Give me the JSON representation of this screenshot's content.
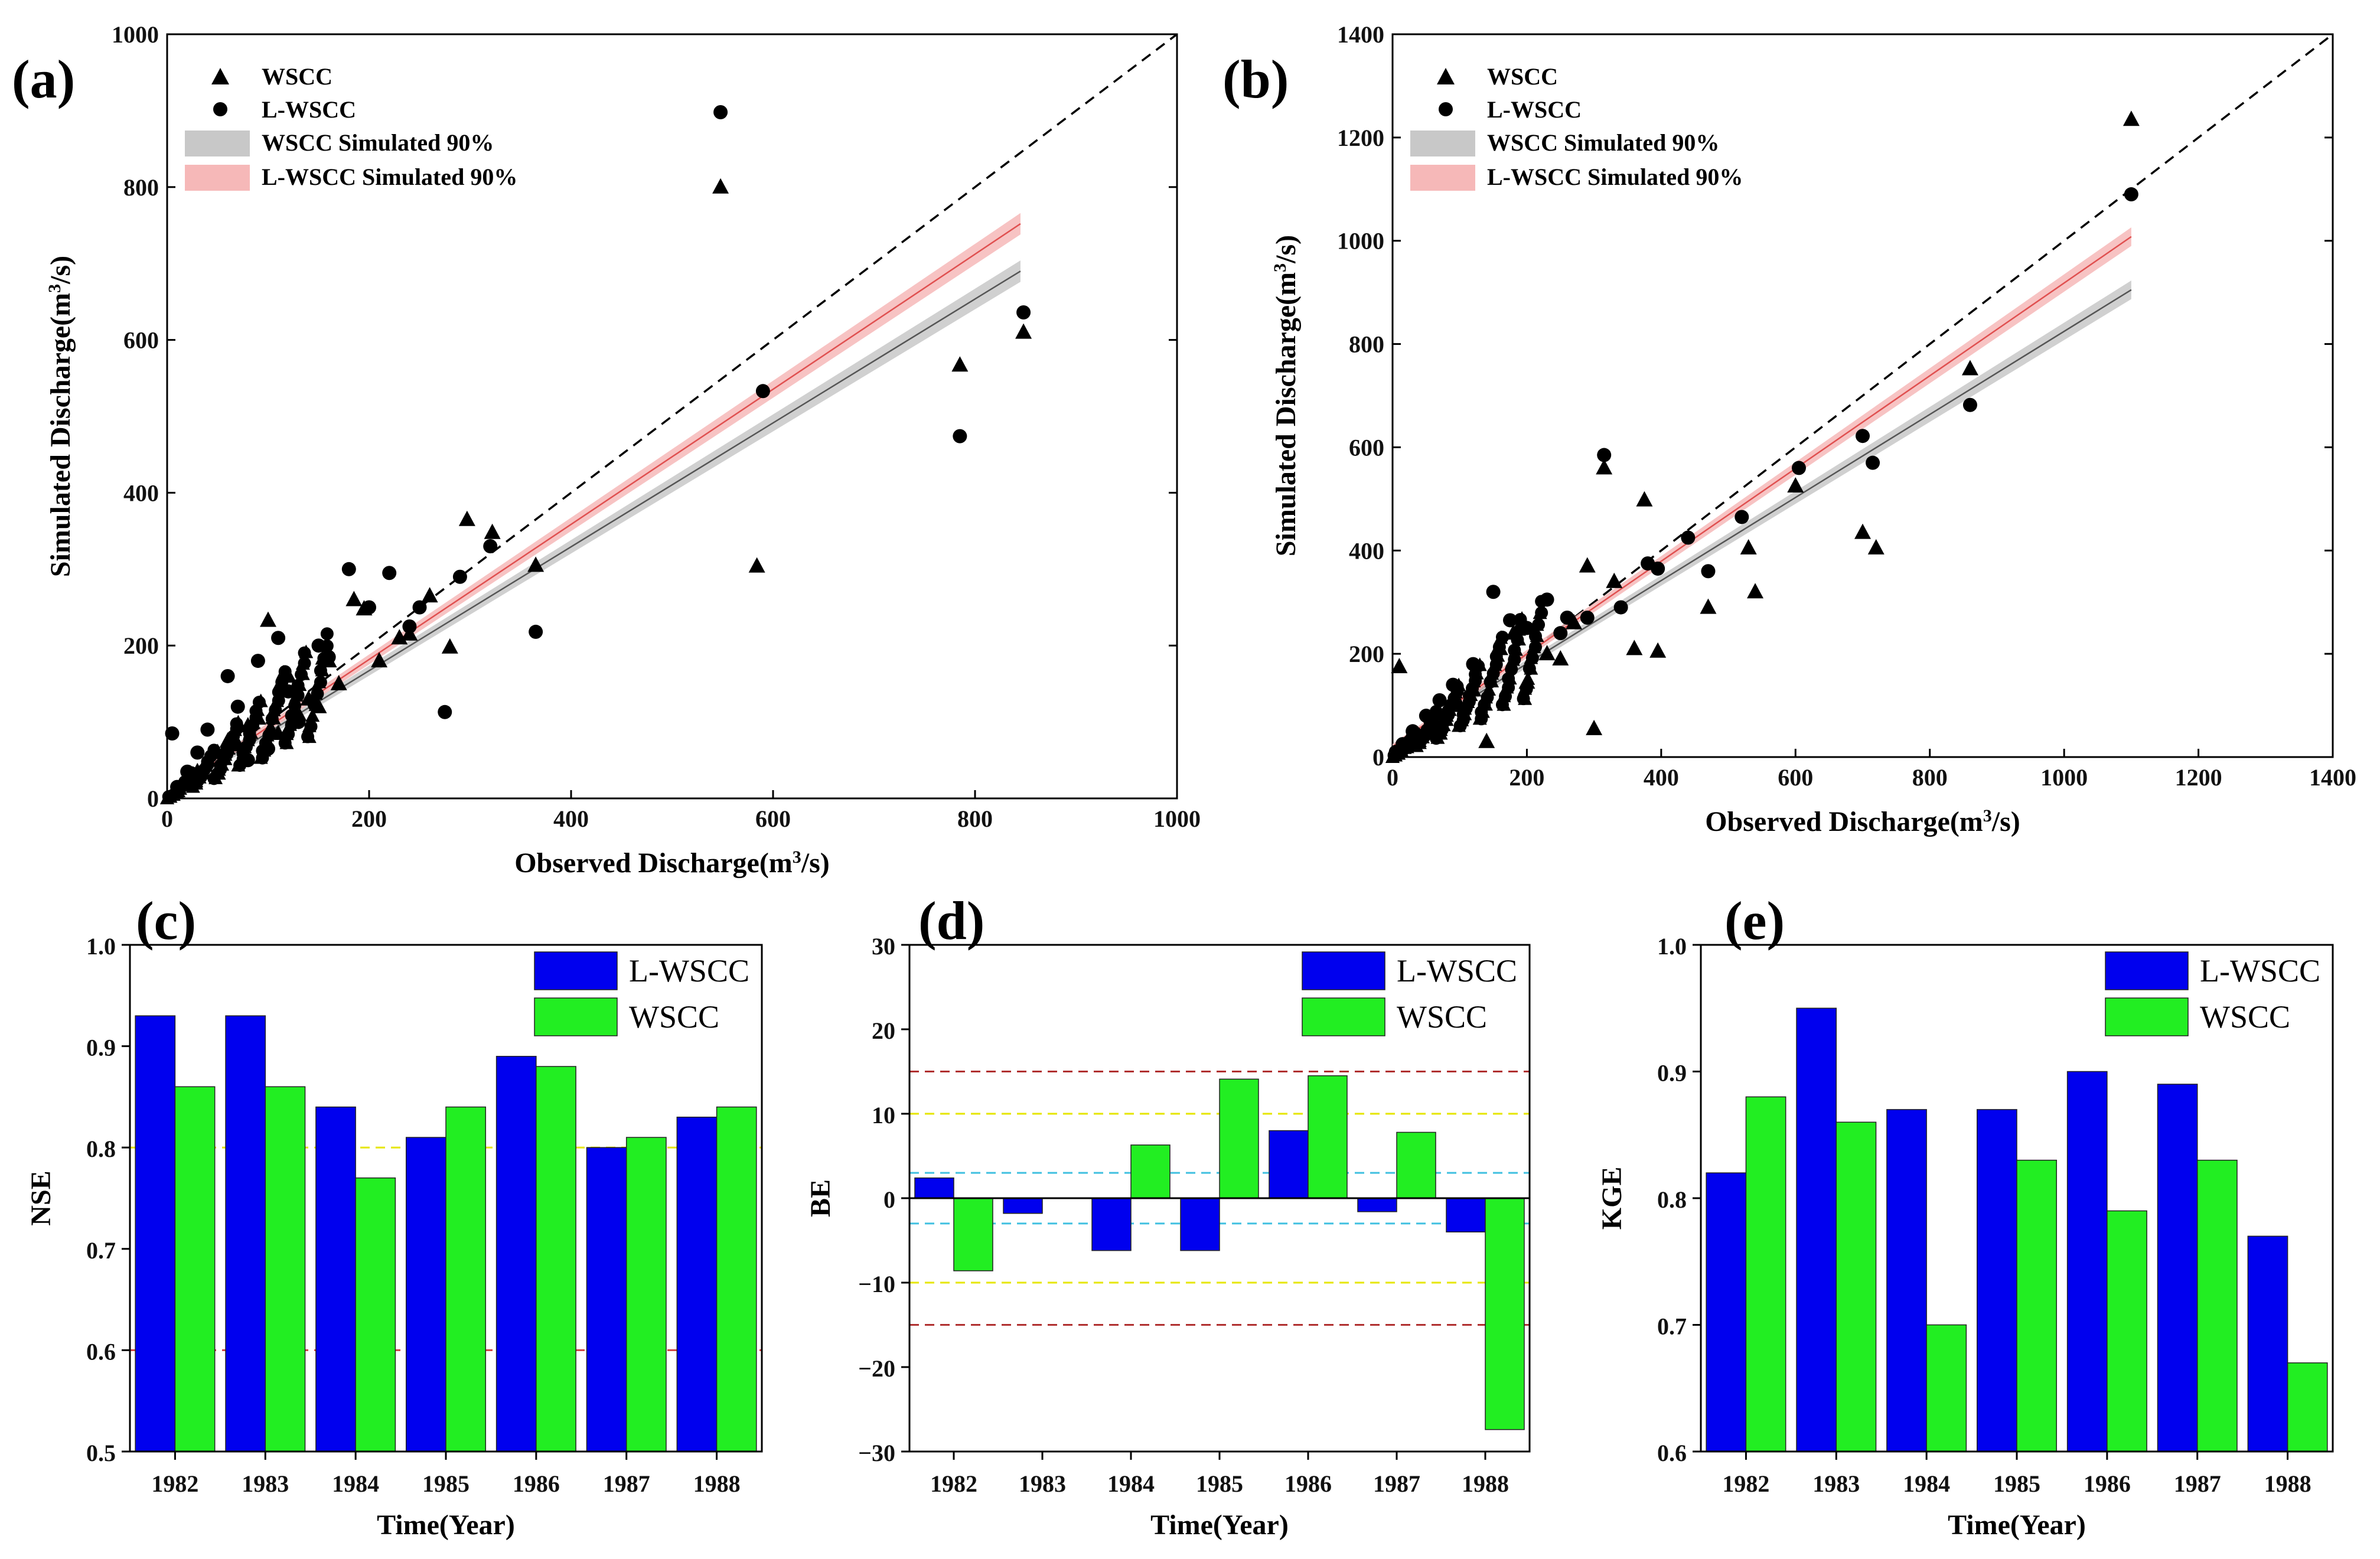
{
  "chart_data": [
    {
      "id": "a",
      "type": "scatter",
      "panel_label": "(a)",
      "xlabel": "Observed Discharge(m³/s)",
      "ylabel": "Simulated Discharge(m³/s)",
      "xlim": [
        0,
        1000
      ],
      "ylim": [
        0,
        1000
      ],
      "xticks": [
        0,
        200,
        400,
        600,
        800,
        1000
      ],
      "yticks": [
        0,
        200,
        400,
        600,
        800,
        1000
      ],
      "legend": [
        "WSCC",
        "L-WSCC",
        "WSCC Simulated 90%",
        "L-WSCC Simulated 90%"
      ],
      "colors": {
        "gray_band": "#c8c8c8",
        "red_band": "#f5b8b8",
        "red_line": "#e05050",
        "gray_line": "#555555"
      },
      "one_to_one_line": {
        "x": [
          0,
          1000
        ],
        "y": [
          0,
          1000
        ]
      },
      "fit_lines": [
        {
          "name": "WSCC Simulated 90%",
          "x": [
            0,
            845
          ],
          "y": [
            5,
            690
          ],
          "band": 14
        },
        {
          "name": "L-WSCC Simulated 90%",
          "x": [
            0,
            845
          ],
          "y": [
            5,
            752
          ],
          "band": 14
        }
      ],
      "series": [
        {
          "name": "WSCC",
          "marker": "triangle",
          "x": [
            548,
            584,
            785,
            848,
            297,
            322,
            365,
            280,
            240,
            195,
            160,
            100,
            120,
            140,
            260,
            210,
            230,
            80,
            60,
            40,
            20,
            10,
            90,
            110,
            150,
            170,
            50,
            30,
            70,
            130,
            185
          ],
          "y": [
            800,
            304,
            567,
            610,
            365,
            348,
            305,
            198,
            215,
            248,
            180,
            233,
            160,
            130,
            265,
            180,
            210,
            95,
            75,
            50,
            25,
            10,
            105,
            85,
            120,
            150,
            60,
            35,
            70,
            110,
            260
          ]
        },
        {
          "name": "L-WSCC",
          "marker": "circle",
          "x": [
            548,
            590,
            785,
            848,
            365,
            275,
            320,
            180,
            220,
            250,
            290,
            200,
            150,
            110,
            90,
            60,
            40,
            30,
            20,
            10,
            5,
            70,
            120,
            160,
            240,
            130,
            80,
            100
          ],
          "y": [
            898,
            533,
            474,
            636,
            218,
            113,
            330,
            300,
            295,
            250,
            290,
            250,
            200,
            210,
            180,
            160,
            90,
            60,
            35,
            15,
            85,
            120,
            140,
            185,
            225,
            100,
            50,
            65
          ]
        }
      ]
    },
    {
      "id": "b",
      "type": "scatter",
      "panel_label": "(b)",
      "xlabel": "Observed Discharge(m³/s)",
      "ylabel": "Simulated Discharge(m³/s)",
      "xlim": [
        0,
        1400
      ],
      "ylim": [
        0,
        1400
      ],
      "xticks": [
        0,
        200,
        400,
        600,
        800,
        1000,
        1200,
        1400
      ],
      "yticks": [
        0,
        200,
        400,
        600,
        800,
        1000,
        1200,
        1400
      ],
      "legend": [
        "WSCC",
        "L-WSCC",
        "WSCC Simulated 90%",
        "L-WSCC Simulated 90%"
      ],
      "one_to_one_line": {
        "x": [
          0,
          1400
        ],
        "y": [
          0,
          1400
        ]
      },
      "fit_lines": [
        {
          "name": "WSCC Simulated 90%",
          "x": [
            0,
            1100
          ],
          "y": [
            20,
            905
          ],
          "band": 18
        },
        {
          "name": "L-WSCC Simulated 90%",
          "x": [
            0,
            1100
          ],
          "y": [
            20,
            1008
          ],
          "band": 18
        }
      ],
      "series": [
        {
          "name": "WSCC",
          "marker": "triangle",
          "x": [
            1100,
            860,
            700,
            720,
            600,
            540,
            530,
            470,
            375,
            395,
            360,
            315,
            300,
            290,
            250,
            200,
            160,
            120,
            100,
            80,
            60,
            40,
            20,
            10,
            140,
            180,
            230,
            270,
            330
          ],
          "y": [
            1235,
            752,
            435,
            405,
            525,
            320,
            405,
            290,
            498,
            205,
            210,
            560,
            55,
            370,
            190,
            145,
            210,
            130,
            100,
            90,
            60,
            40,
            20,
            175,
            30,
            240,
            200,
            260,
            340
          ]
        },
        {
          "name": "L-WSCC",
          "marker": "circle",
          "x": [
            1100,
            860,
            700,
            715,
            605,
            520,
            470,
            440,
            395,
            380,
            315,
            290,
            260,
            230,
            200,
            150,
            120,
            90,
            70,
            50,
            30,
            15,
            5,
            175,
            250,
            340
          ],
          "y": [
            1090,
            682,
            622,
            570,
            560,
            465,
            360,
            425,
            365,
            375,
            585,
            270,
            270,
            305,
            250,
            320,
            180,
            140,
            110,
            80,
            50,
            25,
            10,
            265,
            240,
            290
          ]
        }
      ]
    },
    {
      "id": "c",
      "type": "bar",
      "panel_label": "(c)",
      "categories": [
        "1982",
        "1983",
        "1984",
        "1985",
        "1986",
        "1987",
        "1988"
      ],
      "xlabel": "Time(Year)",
      "ylabel": "NSE",
      "ylim": [
        0.5,
        1.0
      ],
      "yticks": [
        "0.5",
        "0.6",
        "0.7",
        "0.8",
        "0.9",
        "1.0"
      ],
      "series": [
        {
          "name": "L-WSCC",
          "color": "#0000ee",
          "values": [
            0.93,
            0.93,
            0.84,
            0.81,
            0.89,
            0.8,
            0.83
          ]
        },
        {
          "name": "WSCC",
          "color": "#22ee22",
          "values": [
            0.86,
            0.86,
            0.77,
            0.84,
            0.88,
            0.81,
            0.84
          ]
        }
      ],
      "reference_lines": [
        {
          "y": 0.8,
          "color": "#e6e600"
        },
        {
          "y": 0.6,
          "color": "#d04040"
        }
      ]
    },
    {
      "id": "d",
      "type": "bar",
      "panel_label": "(d)",
      "categories": [
        "1982",
        "1983",
        "1984",
        "1985",
        "1986",
        "1987",
        "1988"
      ],
      "xlabel": "Time(Year)",
      "ylabel": "BE",
      "ylim": [
        -30,
        30
      ],
      "yticks": [
        "−30",
        "−20",
        "−10",
        "0",
        "10",
        "20",
        "30"
      ],
      "series": [
        {
          "name": "L-WSCC",
          "color": "#0000ee",
          "values": [
            2.4,
            -1.8,
            -6.2,
            -6.2,
            8.0,
            -1.6,
            -4.0
          ]
        },
        {
          "name": "WSCC",
          "color": "#22ee22",
          "values": [
            -8.6,
            0,
            6.3,
            14.1,
            14.5,
            7.8,
            -27.4
          ]
        }
      ],
      "reference_lines": [
        {
          "y": 15,
          "color": "#b03030"
        },
        {
          "y": 10,
          "color": "#e6e600"
        },
        {
          "y": 3,
          "color": "#40c0e0"
        },
        {
          "y": -3,
          "color": "#40c0e0"
        },
        {
          "y": -10,
          "color": "#e6e600"
        },
        {
          "y": -15,
          "color": "#b03030"
        }
      ]
    },
    {
      "id": "e",
      "type": "bar",
      "panel_label": "(e)",
      "categories": [
        "1982",
        "1983",
        "1984",
        "1985",
        "1986",
        "1987",
        "1988"
      ],
      "xlabel": "Time(Year)",
      "ylabel": "KGE",
      "ylim": [
        0.6,
        1.0
      ],
      "yticks": [
        "0.6",
        "0.7",
        "0.8",
        "0.9",
        "1.0"
      ],
      "series": [
        {
          "name": "L-WSCC",
          "color": "#0000ee",
          "values": [
            0.82,
            0.95,
            0.87,
            0.87,
            0.9,
            0.89,
            0.77
          ]
        },
        {
          "name": "WSCC",
          "color": "#22ee22",
          "values": [
            0.88,
            0.86,
            0.7,
            0.83,
            0.79,
            0.83,
            0.67
          ]
        }
      ],
      "reference_lines": []
    }
  ]
}
